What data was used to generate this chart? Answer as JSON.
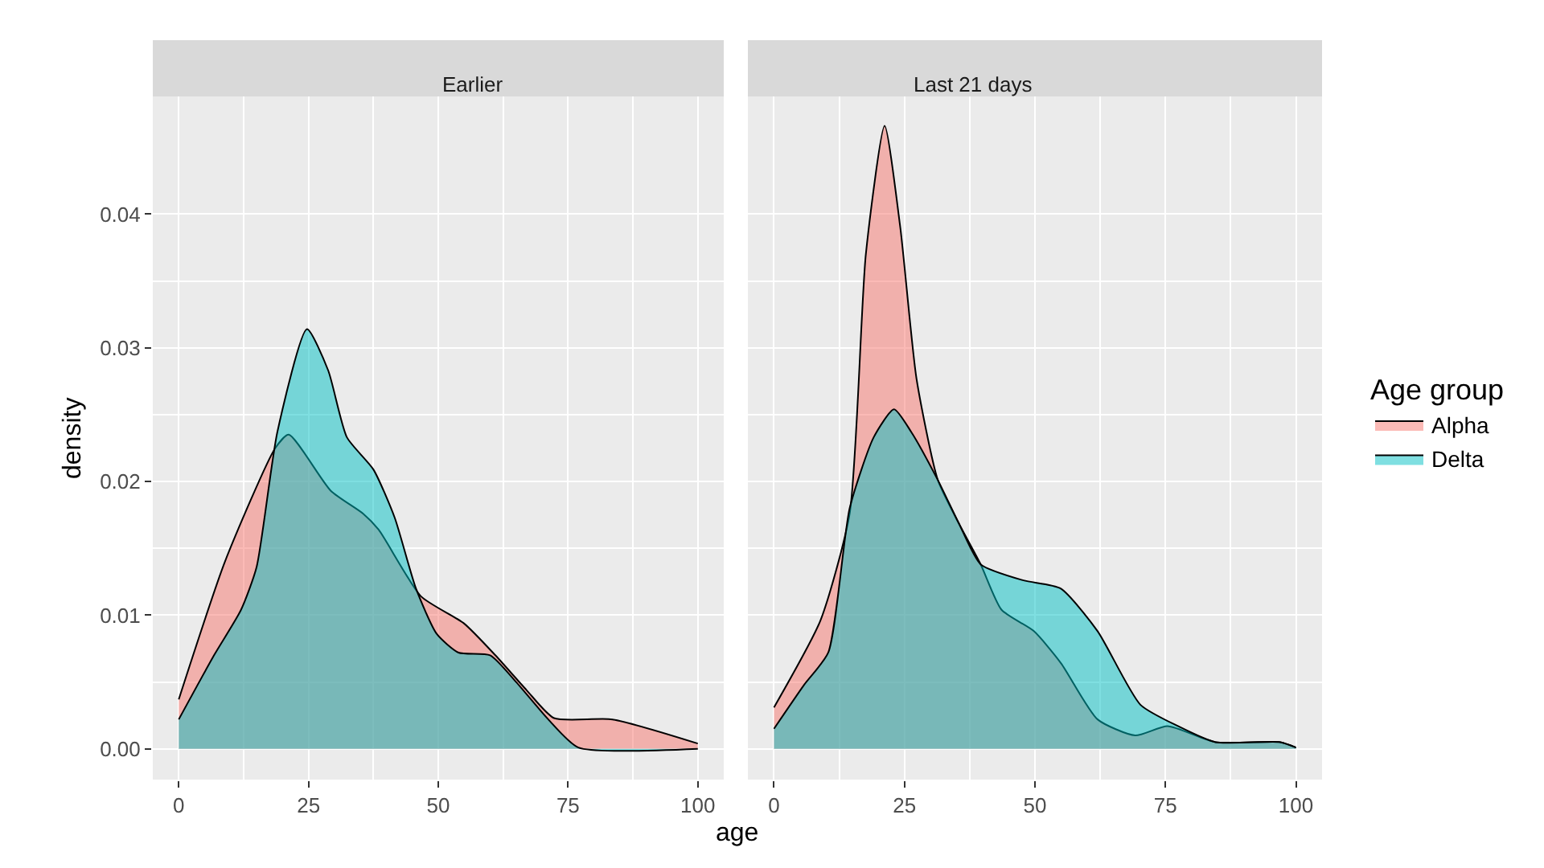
{
  "chart_data": [
    {
      "type": "area",
      "title": "Earlier",
      "xlabel": "age",
      "ylabel": "density",
      "legend_title": "Age group",
      "legend": "right",
      "grid": true,
      "xlim": [
        -5,
        105
      ],
      "xticks": [
        0,
        25,
        50,
        75,
        100
      ],
      "ylim": [
        -0.0023,
        0.0488
      ],
      "yticks": [
        {
          "value": 0,
          "label": "0.00"
        },
        {
          "value": 0.01,
          "label": "0.01"
        },
        {
          "value": 0.02,
          "label": "0.02"
        },
        {
          "value": 0.03,
          "label": "0.03"
        },
        {
          "value": 0.04,
          "label": "0.04"
        }
      ],
      "series": [
        {
          "name": "Alpha",
          "color": "#f8766d",
          "x": [
            0,
            8.9,
            18.6,
            21.2,
            29.3,
            35.5,
            38.5,
            46.7,
            54.9,
            61,
            67,
            72.3,
            83.6,
            100
          ],
          "values": [
            0.0037,
            0.014,
            0.0225,
            0.0235,
            0.0193,
            0.0176,
            0.0164,
            0.0114,
            0.0094,
            0.007,
            0.0044,
            0.0023,
            0.0022,
            0.0004
          ]
        },
        {
          "name": "Delta",
          "color": "#00bfc4",
          "x": [
            0,
            6.8,
            12,
            15,
            19,
            24.7,
            28.8,
            32.4,
            37.5,
            41.6,
            45.7,
            49.7,
            53.9,
            60,
            65,
            71.2,
            77,
            100
          ],
          "values": [
            0.0022,
            0.007,
            0.0104,
            0.0136,
            0.0237,
            0.0314,
            0.0283,
            0.0233,
            0.0209,
            0.0173,
            0.012,
            0.0086,
            0.0072,
            0.007,
            0.005,
            0.0022,
            0.0001,
            0.0
          ]
        }
      ]
    },
    {
      "type": "area",
      "title": "Last 21 days",
      "grid": true,
      "tick_labels": "x",
      "xlim": [
        -5,
        105
      ],
      "xticks": [
        0,
        25,
        50,
        75,
        100
      ],
      "ylim": [
        -0.0023,
        0.0488
      ],
      "yticks": [
        0.0,
        0.01,
        0.02,
        0.03,
        0.04
      ],
      "series": [
        {
          "name": "Alpha",
          "color": "#f8766d",
          "x": [
            0,
            8.9,
            14.5,
            17.6,
            21.2,
            24.2,
            27.3,
            31.4,
            35.5,
            39.6,
            43.6,
            49.8,
            55,
            62,
            69.2,
            75.4,
            84.6,
            97,
            100
          ],
          "values": [
            0.0031,
            0.0096,
            0.0176,
            0.037,
            0.0466,
            0.039,
            0.0277,
            0.0201,
            0.0168,
            0.0138,
            0.0104,
            0.0088,
            0.0064,
            0.0022,
            0.001,
            0.0017,
            0.0005,
            0.0005,
            0.0001
          ]
        },
        {
          "name": "Delta",
          "color": "#00bfc4",
          "x": [
            0,
            5.8,
            10.4,
            14.5,
            19.1,
            23,
            26.3,
            31.4,
            35.5,
            39.6,
            47.8,
            54.9,
            62,
            70.2,
            77.4,
            84.6,
            97,
            100
          ],
          "values": [
            0.0015,
            0.0048,
            0.0072,
            0.018,
            0.0233,
            0.0254,
            0.0237,
            0.0201,
            0.0168,
            0.0138,
            0.0126,
            0.012,
            0.0088,
            0.0033,
            0.0017,
            0.0005,
            0.0005,
            0.0001
          ]
        }
      ]
    }
  ]
}
